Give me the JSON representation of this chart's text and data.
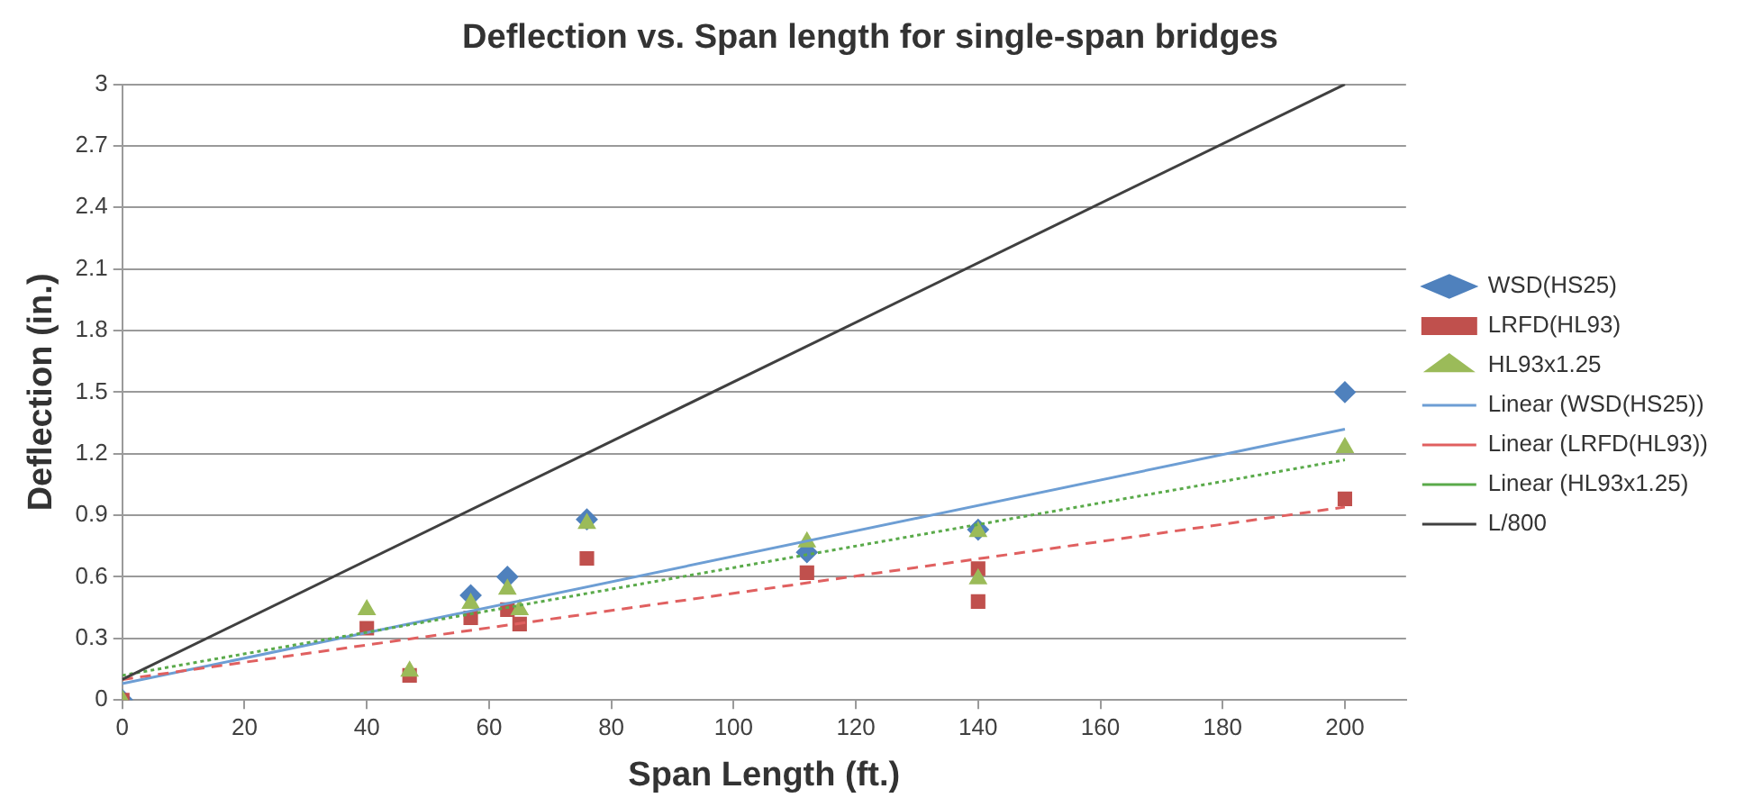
{
  "chart_data": {
    "type": "scatter",
    "title": "Deflection vs. Span length for single-span bridges",
    "xlabel": "Span Length (ft.)",
    "ylabel": "Deflection (in.)",
    "xlim": [
      0,
      210
    ],
    "xticks": [
      0,
      20,
      40,
      60,
      80,
      100,
      120,
      140,
      160,
      180,
      200
    ],
    "ylim": [
      0,
      3
    ],
    "yticks": [
      0,
      0.3,
      0.6,
      0.9,
      1.2,
      1.5,
      1.8,
      2.1,
      2.4,
      2.7,
      3
    ],
    "grid": "y",
    "legend": "right",
    "series": [
      {
        "name": "WSD(HS25)",
        "marker": "diamond",
        "color": "#4f81bd",
        "x": [
          0,
          57,
          63,
          76,
          112,
          140,
          200
        ],
        "values": [
          0,
          0.51,
          0.6,
          0.88,
          0.72,
          0.83,
          1.5
        ]
      },
      {
        "name": "LRFD(HL93)",
        "marker": "square",
        "color": "#c0504d",
        "x": [
          0,
          40,
          47,
          57,
          63,
          65,
          76,
          112,
          140,
          140,
          200
        ],
        "values": [
          0,
          0.35,
          0.12,
          0.4,
          0.44,
          0.37,
          0.69,
          0.62,
          0.64,
          0.48,
          0.98
        ]
      },
      {
        "name": "HL93x1.25",
        "marker": "triangle",
        "color": "#9bbb59",
        "x": [
          0,
          40,
          47,
          57,
          63,
          65,
          76,
          112,
          140,
          140,
          200
        ],
        "values": [
          0,
          0.44,
          0.14,
          0.47,
          0.54,
          0.44,
          0.86,
          0.77,
          0.82,
          0.59,
          1.23
        ]
      },
      {
        "name": "Linear (WSD(HS25))",
        "type": "line",
        "line_style": "solid",
        "color": "#6d9ed4",
        "x": [
          0,
          200
        ],
        "values": [
          0.08,
          1.32
        ]
      },
      {
        "name": "Linear (LRFD(HL93))",
        "type": "line",
        "line_style": "dashed",
        "color": "#e06060",
        "x": [
          0,
          200
        ],
        "values": [
          0.1,
          0.94
        ]
      },
      {
        "name": "Linear (HL93x1.25)",
        "type": "line",
        "line_style": "dotted",
        "color": "#5aaa4a",
        "x": [
          0,
          200
        ],
        "values": [
          0.12,
          1.17
        ]
      },
      {
        "name": "L/800",
        "type": "line",
        "line_style": "solid",
        "color": "#404040",
        "x": [
          0,
          200
        ],
        "values": [
          0.1,
          3
        ]
      }
    ]
  }
}
